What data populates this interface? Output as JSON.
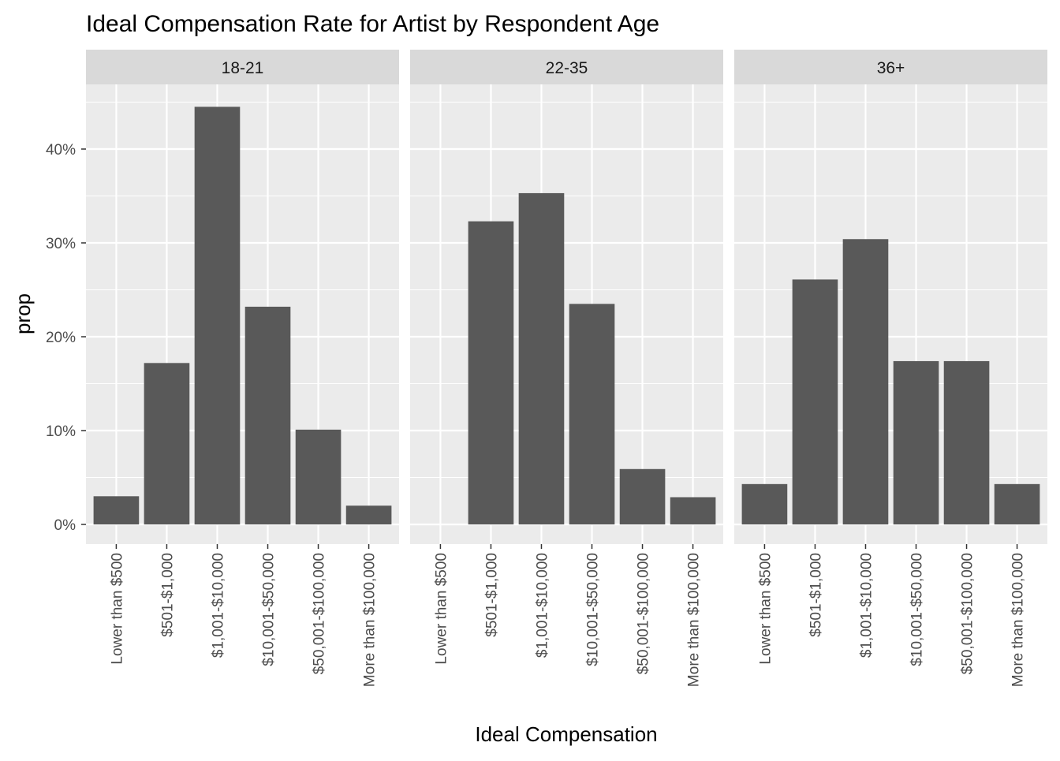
{
  "chart_data": {
    "type": "bar",
    "title": "Ideal Compensation Rate for Artist by Respondent Age",
    "xlabel": "Ideal Compensation",
    "ylabel": "prop",
    "ylim": [
      -0.02,
      0.47
    ],
    "y_ticks": [
      0,
      0.1,
      0.2,
      0.3,
      0.4
    ],
    "y_tick_labels": [
      "0%",
      "10%",
      "20%",
      "30%",
      "40%"
    ],
    "grid": true,
    "categories": [
      "Lower than $500",
      "$501-$1,000",
      "$1,001-$10,000",
      "$10,001-$50,000",
      "$50,001-$100,000",
      "More than $100,000"
    ],
    "panels": [
      {
        "name": "18-21",
        "values": [
          0.03,
          0.172,
          0.445,
          0.232,
          0.101,
          0.02
        ]
      },
      {
        "name": "22-35",
        "values": [
          0.0,
          0.323,
          0.353,
          0.235,
          0.059,
          0.029
        ]
      },
      {
        "name": "36+",
        "values": [
          0.043,
          0.261,
          0.304,
          0.174,
          0.174,
          0.043
        ]
      }
    ],
    "colors": {
      "bar": "#595959",
      "panel_bg": "#ebebeb",
      "strip_bg": "#d9d9d9",
      "grid": "#ffffff"
    }
  }
}
